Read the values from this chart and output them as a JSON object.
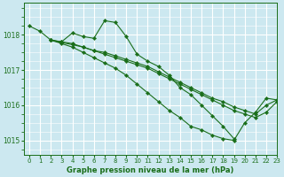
{
  "title": "Graphe pression niveau de la mer (hPa)",
  "bg_color": "#cce8f0",
  "grid_color": "#ffffff",
  "line_color": "#1a6e1a",
  "xlim": [
    -0.5,
    23
  ],
  "ylim": [
    1014.6,
    1018.9
  ],
  "yticks": [
    1015,
    1016,
    1017,
    1018
  ],
  "xticks": [
    0,
    1,
    2,
    3,
    4,
    5,
    6,
    7,
    8,
    9,
    10,
    11,
    12,
    13,
    14,
    15,
    16,
    17,
    18,
    19,
    20,
    21,
    22,
    23
  ],
  "series": [
    {
      "x": [
        0,
        1,
        2,
        3,
        4,
        5,
        6,
        7,
        8,
        9,
        10,
        11,
        12,
        13,
        14,
        15,
        16,
        17,
        18,
        19
      ],
      "y": [
        1018.25,
        1018.1,
        1017.85,
        1017.8,
        1018.05,
        1017.95,
        1017.9,
        1018.4,
        1018.35,
        1017.95,
        1017.45,
        1017.25,
        1017.1,
        1016.85,
        1016.5,
        1016.3,
        1016.0,
        1015.7,
        1015.4,
        1015.05
      ]
    },
    {
      "x": [
        2,
        3,
        4,
        5,
        6,
        7,
        8,
        9,
        10,
        11,
        12,
        13,
        14,
        15,
        16,
        17,
        18,
        19,
        20,
        21,
        22,
        23
      ],
      "y": [
        1017.85,
        1017.8,
        1017.75,
        1017.65,
        1017.55,
        1017.5,
        1017.4,
        1017.3,
        1017.2,
        1017.1,
        1016.95,
        1016.8,
        1016.65,
        1016.5,
        1016.35,
        1016.2,
        1016.1,
        1015.95,
        1015.85,
        1015.75,
        1016.0,
        1016.15
      ]
    },
    {
      "x": [
        2,
        3,
        4,
        5,
        6,
        7,
        8,
        9,
        10,
        11,
        12,
        13,
        14,
        15,
        16,
        17,
        18,
        19,
        20,
        21,
        22,
        23
      ],
      "y": [
        1017.85,
        1017.78,
        1017.72,
        1017.65,
        1017.55,
        1017.45,
        1017.35,
        1017.25,
        1017.15,
        1017.05,
        1016.9,
        1016.75,
        1016.6,
        1016.45,
        1016.3,
        1016.15,
        1016.0,
        1015.85,
        1015.75,
        1015.65,
        1015.8,
        1016.1
      ]
    },
    {
      "x": [
        2,
        3,
        4,
        5,
        6,
        7,
        8,
        9,
        10,
        11,
        12,
        13,
        14,
        15,
        16,
        17,
        18,
        19,
        20,
        21,
        22,
        23
      ],
      "y": [
        1017.85,
        1017.75,
        1017.65,
        1017.5,
        1017.35,
        1017.2,
        1017.05,
        1016.85,
        1016.6,
        1016.35,
        1016.1,
        1015.85,
        1015.65,
        1015.4,
        1015.3,
        1015.15,
        1015.05,
        1015.0,
        1015.5,
        1015.8,
        1016.2,
        1016.15
      ]
    }
  ]
}
